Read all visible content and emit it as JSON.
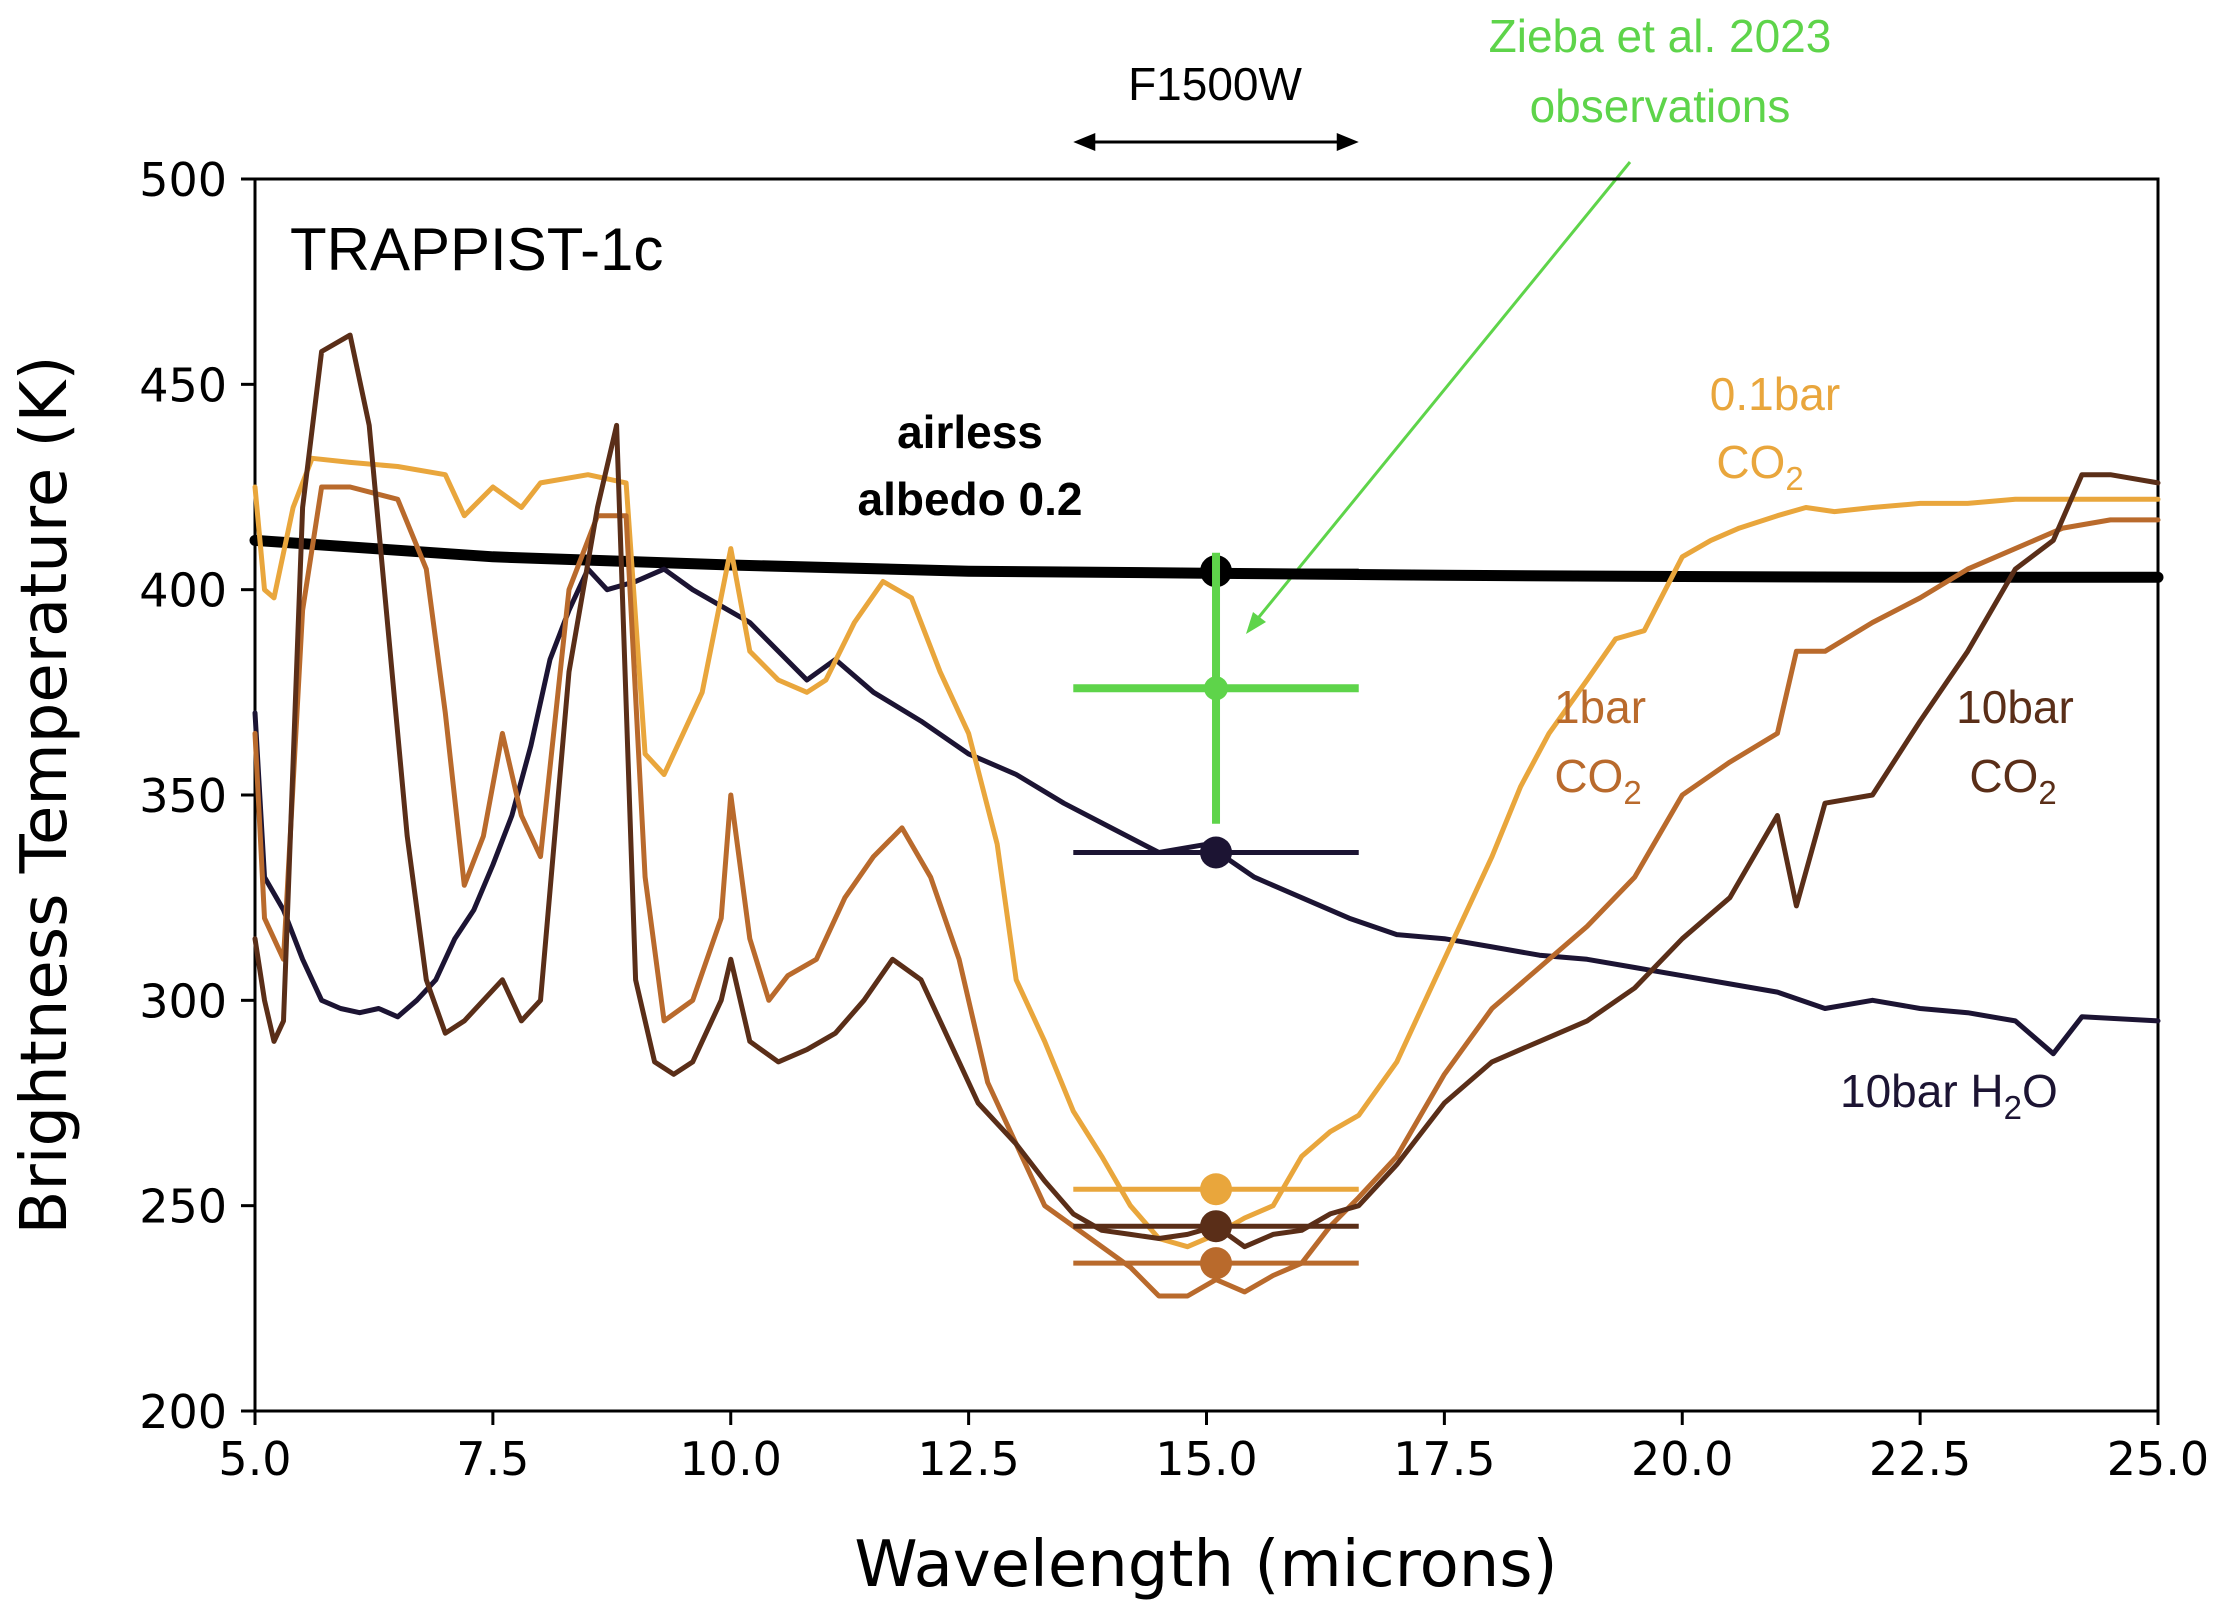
{
  "chart_data": {
    "type": "line",
    "title": "TRAPPIST-1c",
    "xlabel": "Wavelength (microns)",
    "ylabel": "Brightness Temperature (K)",
    "xlim": [
      5.0,
      25.0
    ],
    "ylim": [
      200,
      500
    ],
    "xticks": [
      "5.0",
      "7.5",
      "10.0",
      "12.5",
      "15.0",
      "17.5",
      "20.0",
      "22.5",
      "25.0"
    ],
    "yticks": [
      "200",
      "250",
      "300",
      "350",
      "400",
      "450",
      "500"
    ],
    "grid": false,
    "filter": {
      "label": "F1500W",
      "range": [
        13.6,
        16.6
      ]
    },
    "annotations": {
      "observation": "Zieba et al. 2023\nobservations",
      "airless": "airless\nalbedo 0.2",
      "co2_01": "0.1bar\nCO",
      "co2_1": "1bar\nCO",
      "co2_10": "10bar\nCO",
      "h2o_10": "10bar H",
      "h2o_tail": "O",
      "subscript_2": "2"
    },
    "observation": {
      "x": 15.1,
      "y": 376,
      "yerr": 33,
      "xrange": [
        13.6,
        16.6
      ]
    },
    "series": [
      {
        "name": "airless albedo 0.2",
        "color": "#000000",
        "x": [
          5.0,
          7.5,
          10.0,
          12.5,
          15.0,
          17.5,
          20.0,
          22.5,
          25.0
        ],
        "y": [
          412,
          408,
          406,
          404.5,
          404,
          403.5,
          403.2,
          403,
          403
        ],
        "band_point": 404.5
      },
      {
        "name": "10bar H2O",
        "color": "#1c1433",
        "x": [
          5.0,
          5.1,
          5.3,
          5.5,
          5.7,
          5.9,
          6.1,
          6.3,
          6.5,
          6.7,
          6.9,
          7.1,
          7.3,
          7.5,
          7.7,
          7.9,
          8.1,
          8.3,
          8.5,
          8.7,
          9.0,
          9.3,
          9.6,
          9.9,
          10.2,
          10.5,
          10.8,
          11.1,
          11.5,
          12.0,
          12.5,
          13.0,
          13.5,
          14.0,
          14.5,
          15.0,
          15.5,
          16.0,
          16.5,
          17.0,
          17.5,
          18.0,
          18.5,
          19.0,
          19.5,
          20.0,
          20.5,
          21.0,
          21.5,
          22.0,
          22.5,
          23.0,
          23.5,
          23.9,
          24.2,
          25.0
        ],
        "y": [
          370,
          330,
          322,
          310,
          300,
          298,
          297,
          298,
          296,
          300,
          305,
          315,
          322,
          333,
          345,
          362,
          383,
          395,
          405,
          400,
          402,
          405,
          400,
          396,
          392,
          385,
          378,
          383,
          375,
          368,
          360,
          355,
          348,
          342,
          336,
          338,
          330,
          325,
          320,
          316,
          315,
          313,
          311,
          310,
          308,
          306,
          304,
          302,
          298,
          300,
          298,
          297,
          295,
          287,
          296,
          295
        ],
        "band_point": 336
      },
      {
        "name": "0.1bar CO2",
        "color": "#e9a63c",
        "x": [
          5.0,
          5.1,
          5.2,
          5.4,
          5.6,
          6.0,
          6.5,
          7.0,
          7.2,
          7.5,
          7.8,
          8.0,
          8.5,
          8.9,
          9.1,
          9.3,
          9.5,
          9.7,
          10.0,
          10.2,
          10.5,
          10.8,
          11.0,
          11.3,
          11.6,
          11.9,
          12.2,
          12.5,
          12.8,
          13.0,
          13.3,
          13.6,
          13.9,
          14.2,
          14.5,
          14.8,
          15.1,
          15.4,
          15.7,
          16.0,
          16.3,
          16.6,
          17.0,
          17.3,
          17.6,
          18.0,
          18.3,
          18.6,
          19.0,
          19.3,
          19.6,
          20.0,
          20.3,
          20.6,
          21.0,
          21.3,
          21.6,
          22.0,
          22.5,
          23.0,
          23.5,
          24.0,
          24.5,
          25.0
        ],
        "y": [
          425,
          400,
          398,
          420,
          432,
          431,
          430,
          428,
          418,
          425,
          420,
          426,
          428,
          426,
          360,
          355,
          365,
          375,
          410,
          385,
          378,
          375,
          378,
          392,
          402,
          398,
          380,
          365,
          338,
          305,
          290,
          273,
          262,
          250,
          242,
          240,
          243,
          247,
          250,
          262,
          268,
          272,
          285,
          300,
          315,
          335,
          352,
          365,
          378,
          388,
          390,
          408,
          412,
          415,
          418,
          420,
          419,
          420,
          421,
          421,
          422,
          422,
          422,
          422
        ],
        "band_point": 254
      },
      {
        "name": "1bar CO2",
        "color": "#b96a2c",
        "x": [
          5.0,
          5.1,
          5.3,
          5.5,
          5.7,
          6.0,
          6.5,
          6.8,
          7.0,
          7.2,
          7.4,
          7.6,
          7.8,
          8.0,
          8.3,
          8.6,
          8.9,
          9.1,
          9.3,
          9.6,
          9.9,
          10.0,
          10.2,
          10.4,
          10.6,
          10.9,
          11.2,
          11.5,
          11.8,
          12.1,
          12.4,
          12.7,
          13.0,
          13.3,
          13.6,
          13.9,
          14.2,
          14.5,
          14.8,
          15.1,
          15.4,
          15.7,
          16.0,
          16.3,
          16.6,
          17.0,
          17.5,
          18.0,
          18.5,
          19.0,
          19.5,
          20.0,
          20.5,
          21.0,
          21.2,
          21.5,
          22.0,
          22.5,
          23.0,
          23.5,
          24.0,
          24.5,
          25.0
        ],
        "y": [
          365,
          320,
          310,
          395,
          425,
          425,
          422,
          405,
          370,
          328,
          340,
          365,
          345,
          335,
          400,
          418,
          418,
          330,
          295,
          300,
          320,
          350,
          315,
          300,
          306,
          310,
          325,
          335,
          342,
          330,
          310,
          280,
          265,
          250,
          245,
          240,
          235,
          228,
          228,
          232,
          229,
          233,
          236,
          245,
          252,
          262,
          282,
          298,
          308,
          318,
          330,
          350,
          358,
          365,
          385,
          385,
          392,
          398,
          405,
          410,
          415,
          417,
          417
        ],
        "band_point": 236
      },
      {
        "name": "10bar CO2",
        "color": "#5a2e18",
        "x": [
          5.0,
          5.1,
          5.2,
          5.3,
          5.5,
          5.7,
          6.0,
          6.2,
          6.4,
          6.6,
          6.8,
          7.0,
          7.2,
          7.4,
          7.6,
          7.8,
          8.0,
          8.3,
          8.6,
          8.8,
          9.0,
          9.2,
          9.4,
          9.6,
          9.9,
          10.0,
          10.2,
          10.5,
          10.8,
          11.1,
          11.4,
          11.7,
          12.0,
          12.3,
          12.6,
          13.0,
          13.3,
          13.6,
          13.9,
          14.2,
          14.5,
          14.8,
          15.1,
          15.4,
          15.7,
          16.0,
          16.3,
          16.6,
          17.0,
          17.5,
          18.0,
          18.5,
          19.0,
          19.5,
          20.0,
          20.5,
          21.0,
          21.2,
          21.5,
          22.0,
          22.5,
          23.0,
          23.5,
          23.9,
          24.2,
          24.5,
          25.0
        ],
        "y": [
          315,
          300,
          290,
          295,
          420,
          458,
          462,
          440,
          390,
          340,
          305,
          292,
          295,
          300,
          305,
          295,
          300,
          380,
          420,
          440,
          305,
          285,
          282,
          285,
          300,
          310,
          290,
          285,
          288,
          292,
          300,
          310,
          305,
          290,
          275,
          265,
          256,
          248,
          244,
          243,
          242,
          243,
          245,
          240,
          243,
          244,
          248,
          250,
          260,
          275,
          285,
          290,
          295,
          303,
          315,
          325,
          345,
          323,
          348,
          350,
          368,
          385,
          405,
          412,
          428,
          428,
          426
        ],
        "band_point": 245
      }
    ]
  }
}
